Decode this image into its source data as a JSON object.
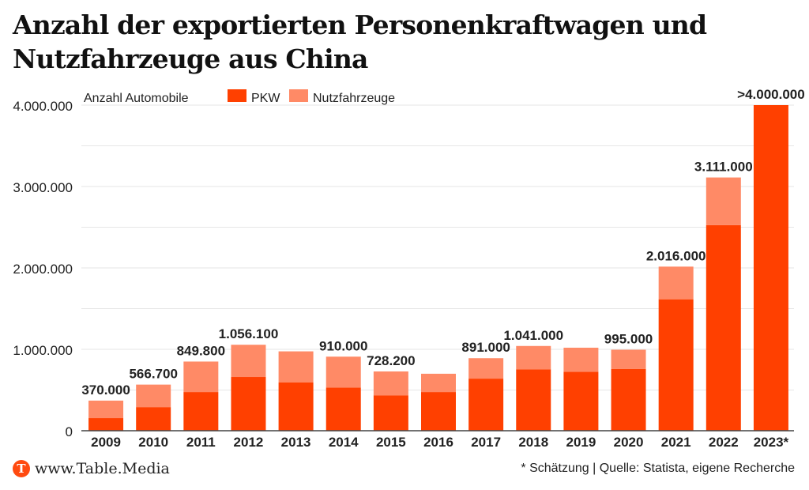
{
  "header": {
    "title": "Anzahl der exportierten Personenkraftwagen und Nutzfahrzeuge aus China"
  },
  "footer": {
    "logo_letter": "T",
    "site": "www.Table.Media",
    "source": "* Schätzung | Quelle: Statista, eigene Recherche"
  },
  "colors": {
    "pkw": "#ff4000",
    "nutzfahrzeuge": "#ff8a66",
    "brand": "#ff4a10"
  },
  "chart_data": {
    "type": "bar",
    "stacked": true,
    "title": "Anzahl der exportierten Personenkraftwagen und Nutzfahrzeuge aus China",
    "ylabel": "Anzahl Automobile",
    "xlabel": "",
    "ylim": [
      0,
      4000000
    ],
    "yticks": [
      0,
      1000000,
      2000000,
      3000000,
      4000000
    ],
    "ytick_labels": [
      "0",
      "1.000.000",
      "2.000.000",
      "3.000.000",
      "4.000.000"
    ],
    "grid_step": 500000,
    "grid": true,
    "legend_position": "top",
    "categories": [
      "2009",
      "2010",
      "2011",
      "2012",
      "2013",
      "2014",
      "2015",
      "2016",
      "2017",
      "2018",
      "2019",
      "2020",
      "2021",
      "2022",
      "2023*"
    ],
    "series": [
      {
        "name": "PKW",
        "color": "#ff4000",
        "values": [
          155000,
          290000,
          475000,
          660000,
          595000,
          530000,
          435000,
          475000,
          640000,
          755000,
          725000,
          760000,
          1615000,
          2525000,
          4000000
        ]
      },
      {
        "name": "Nutzfahrzeuge",
        "color": "#ff8a66",
        "values": [
          215000,
          276700,
          374800,
          396100,
          380000,
          380000,
          293200,
          225000,
          251000,
          286000,
          295000,
          235000,
          401000,
          586000,
          0
        ]
      }
    ],
    "totals": [
      370000,
      566700,
      849800,
      1056100,
      975000,
      910000,
      728200,
      700000,
      891000,
      1041000,
      1020000,
      995000,
      2016000,
      3111000,
      4000000
    ],
    "data_labels": [
      "370.000",
      "566.700",
      "849.800",
      "1.056.100",
      "",
      "910.000",
      "728.200",
      "",
      "891.000",
      "1.041.000",
      "",
      "995.000",
      "2.016.000",
      "3.111.000",
      ">4.000.000"
    ]
  }
}
